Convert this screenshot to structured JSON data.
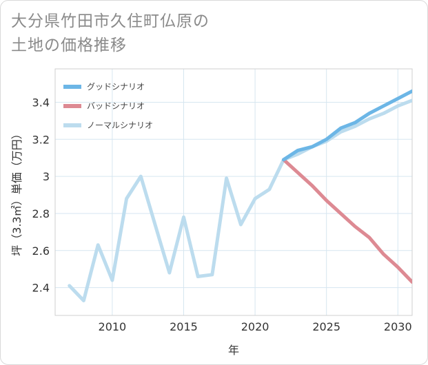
{
  "title": "大分県竹田市久住町仏原の\n土地の価格推移",
  "chart_data": {
    "type": "line",
    "xlabel": "年",
    "ylabel": "坪（3.3㎡）単価（万円）",
    "xlim": [
      2006,
      2031
    ],
    "ylim": [
      2.25,
      3.58
    ],
    "x_ticks": [
      2010,
      2015,
      2020,
      2025,
      2030
    ],
    "y_ticks": [
      2.4,
      2.6,
      2.8,
      3,
      3.2,
      3.4
    ],
    "x_tick_labels": [
      "2010",
      "2015",
      "2020",
      "2025",
      "2030"
    ],
    "y_tick_labels": [
      "2.4",
      "2.6",
      "2.8",
      "3",
      "3.2",
      "3.4"
    ],
    "grid": true,
    "legend_position": "top-left",
    "series": [
      {
        "name": "グッドシナリオ",
        "color": "#6cb6e6",
        "x": [
          2022,
          2023,
          2024,
          2025,
          2026,
          2027,
          2028,
          2029,
          2030,
          2031
        ],
        "y": [
          3.09,
          3.14,
          3.16,
          3.2,
          3.26,
          3.29,
          3.34,
          3.38,
          3.42,
          3.46
        ]
      },
      {
        "name": "バッドシナリオ",
        "color": "#dd8a93",
        "x": [
          2022,
          2023,
          2024,
          2025,
          2026,
          2027,
          2028,
          2029,
          2030,
          2031
        ],
        "y": [
          3.09,
          3.02,
          2.95,
          2.87,
          2.8,
          2.73,
          2.67,
          2.58,
          2.51,
          2.43
        ]
      },
      {
        "name": "ノーマルシナリオ",
        "color": "#bcdcee",
        "x": [
          2007,
          2008,
          2009,
          2010,
          2011,
          2012,
          2013,
          2014,
          2015,
          2016,
          2017,
          2018,
          2019,
          2020,
          2021,
          2022,
          2023,
          2024,
          2025,
          2026,
          2027,
          2028,
          2029,
          2030,
          2031
        ],
        "y": [
          2.41,
          2.33,
          2.63,
          2.44,
          2.88,
          3.0,
          2.74,
          2.48,
          2.78,
          2.46,
          2.47,
          2.99,
          2.74,
          2.88,
          2.93,
          3.09,
          3.12,
          3.16,
          3.19,
          3.24,
          3.27,
          3.31,
          3.34,
          3.38,
          3.41
        ]
      }
    ]
  }
}
